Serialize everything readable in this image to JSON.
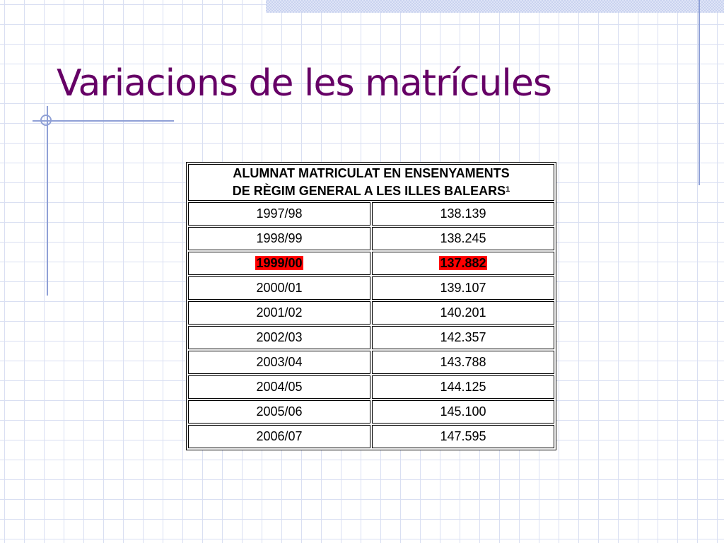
{
  "slide": {
    "title": "Variacions de les matrícules"
  },
  "table": {
    "header_line1": "ALUMNAT MATRICULAT EN ENSENYAMENTS",
    "header_line2": "DE RÈGIM GENERAL A LES ILLES BALEARS",
    "header_footnote": "1",
    "highlight_color": "#ff0000",
    "rows": [
      {
        "year": "1997/98",
        "value": "138.139",
        "highlight": false
      },
      {
        "year": "1998/99",
        "value": "138.245",
        "highlight": false
      },
      {
        "year": "1999/00",
        "value": "137.882",
        "highlight": true
      },
      {
        "year": "2000/01",
        "value": "139.107",
        "highlight": false
      },
      {
        "year": "2001/02",
        "value": "140.201",
        "highlight": false
      },
      {
        "year": "2002/03",
        "value": "142.357",
        "highlight": false
      },
      {
        "year": "2003/04",
        "value": "143.788",
        "highlight": false
      },
      {
        "year": "2004/05",
        "value": "144.125",
        "highlight": false
      },
      {
        "year": "2005/06",
        "value": "145.100",
        "highlight": false
      },
      {
        "year": "2006/07",
        "value": "147.595",
        "highlight": false
      }
    ]
  }
}
